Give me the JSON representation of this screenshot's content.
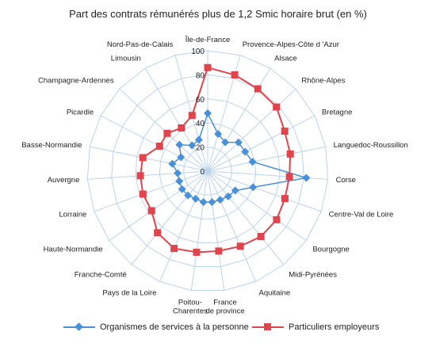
{
  "chart_data": {
    "type": "radar",
    "title": "Part des contrats rémunérés plus de 1,2 Smic horaire brut (en %)",
    "categories": [
      "Île-de-France",
      "Provence-Alpes-Côte d 'Azur",
      "Alsace",
      "Rhône-Alpes",
      "Bretagne",
      "Languedoc-Roussillon",
      "Corse",
      "Centre-Val de Loire",
      "Bourgogne",
      "Midi-Pyrénées",
      "Aquitaine",
      "France\nde province",
      "Poitou-\nCharentes",
      "Pays de la Loire",
      "Franche-Comté",
      "Haute-Normandie",
      "Lorraine",
      "Auvergne",
      "Basse-Normandie",
      "Picardie",
      "Champagne-Ardennes",
      "Limousin",
      "Nord-Pas-de-Calais"
    ],
    "rlim": [
      0,
      100
    ],
    "ticks": [
      "0",
      "20",
      "40",
      "60",
      "80",
      "100"
    ],
    "grid": true,
    "legend_position": "bottom",
    "series": [
      {
        "name": "Organismes de services à la personne",
        "color": "#4a90d9",
        "marker": "diamond",
        "values": [
          48,
          32,
          28,
          35,
          35,
          38,
          82,
          40,
          28,
          27,
          26,
          26,
          26,
          25,
          26,
          26,
          25,
          25,
          30,
          25,
          32,
          25,
          27
        ]
      },
      {
        "name": "Particuliers employeurs",
        "color": "#e0454d",
        "marker": "square",
        "values": [
          86,
          83,
          80,
          78,
          72,
          70,
          68,
          68,
          70,
          70,
          68,
          67,
          68,
          70,
          66,
          57,
          57,
          56,
          55,
          45,
          46,
          42,
          48
        ]
      }
    ]
  }
}
